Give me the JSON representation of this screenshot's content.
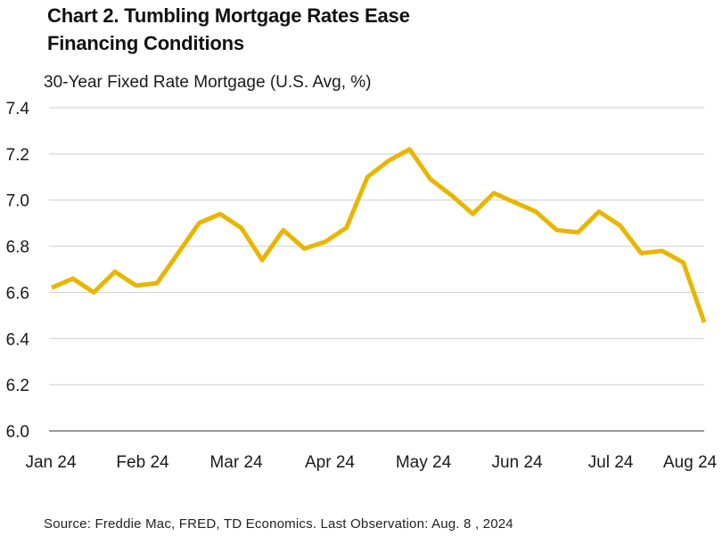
{
  "chart_data": {
    "type": "line",
    "title": [
      "Chart 2. Tumbling Mortgage Rates Ease",
      "Financing Conditions"
    ],
    "subtitle": "30-Year Fixed Rate Mortgage (U.S. Avg, %)",
    "source": "Source: Freddie Mac, FRED, TD Economics. Last Observation: Aug. 8 , 2024",
    "xlabel": "",
    "ylabel": "",
    "ylim": [
      6.0,
      7.4
    ],
    "yticks": [
      "6.0",
      "6.2",
      "6.4",
      "6.6",
      "6.8",
      "7.0",
      "7.2",
      "7.4"
    ],
    "xticks": [
      "Jan 24",
      "Feb 24",
      "Mar 24",
      "Apr 24",
      "May 24",
      "Jun 24",
      "Jul 24",
      "Aug 24"
    ],
    "grid": true,
    "series": [
      {
        "name": "30-Year Fixed Rate Mortgage",
        "color": "#e8b600",
        "values": [
          6.62,
          6.66,
          6.6,
          6.69,
          6.63,
          6.64,
          6.77,
          6.9,
          6.94,
          6.88,
          6.74,
          6.87,
          6.79,
          6.82,
          6.88,
          7.1,
          7.17,
          7.22,
          7.09,
          7.02,
          6.94,
          7.03,
          6.99,
          6.95,
          6.87,
          6.86,
          6.95,
          6.89,
          6.77,
          6.78,
          6.73,
          6.47
        ]
      }
    ]
  }
}
